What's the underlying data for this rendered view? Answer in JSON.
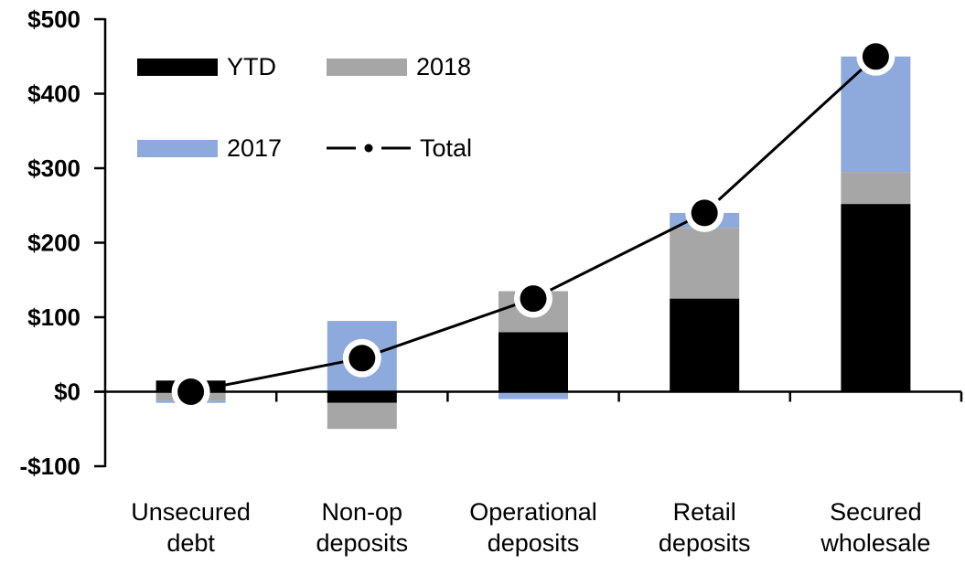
{
  "chart_data": {
    "type": "bar",
    "subtype": "stacked_bars_with_total_line_overlay",
    "title": "",
    "xlabel": "",
    "ylabel": "",
    "ylim": [
      -100,
      500
    ],
    "ytick_interval": 100,
    "ytick_labels": [
      "$500",
      "$400",
      "$300",
      "$200",
      "$100",
      "$0",
      "-$100"
    ],
    "grid": false,
    "legend_position": "inside-top-left",
    "categories": [
      "Unsecured debt",
      "Non-op deposits",
      "Operational deposits",
      "Retail deposits",
      "Secured wholesale"
    ],
    "category_label_lines": [
      [
        "Unsecured",
        "debt"
      ],
      [
        "Non-op",
        "deposits"
      ],
      [
        "Operational",
        "deposits"
      ],
      [
        "Retail",
        "deposits"
      ],
      [
        "Secured",
        "wholesale"
      ]
    ],
    "series": [
      {
        "name": "YTD",
        "type": "bar",
        "color": "#000000",
        "values": [
          15,
          -15,
          80,
          125,
          252
        ]
      },
      {
        "name": "2018",
        "type": "bar",
        "color": "#A6A6A6",
        "values": [
          -12,
          -35,
          55,
          95,
          43
        ]
      },
      {
        "name": "2017",
        "type": "bar",
        "color": "#8EA9DB",
        "values": [
          -3,
          95,
          -10,
          20,
          155
        ]
      }
    ],
    "line_series": {
      "name": "Total",
      "type": "line",
      "color": "#000000",
      "marker": "black-circle-with-white-halo",
      "values": [
        0,
        45,
        125,
        240,
        450
      ]
    }
  },
  "legend": {
    "items": [
      {
        "label": "YTD"
      },
      {
        "label": "2018"
      },
      {
        "label": "2017"
      },
      {
        "label": "Total"
      }
    ]
  },
  "colors": {
    "ytd": "#000000",
    "year2018": "#A6A6A6",
    "year2017": "#8EA9DB",
    "total_line": "#000000",
    "axis": "#000000",
    "background": "#FFFFFF"
  }
}
